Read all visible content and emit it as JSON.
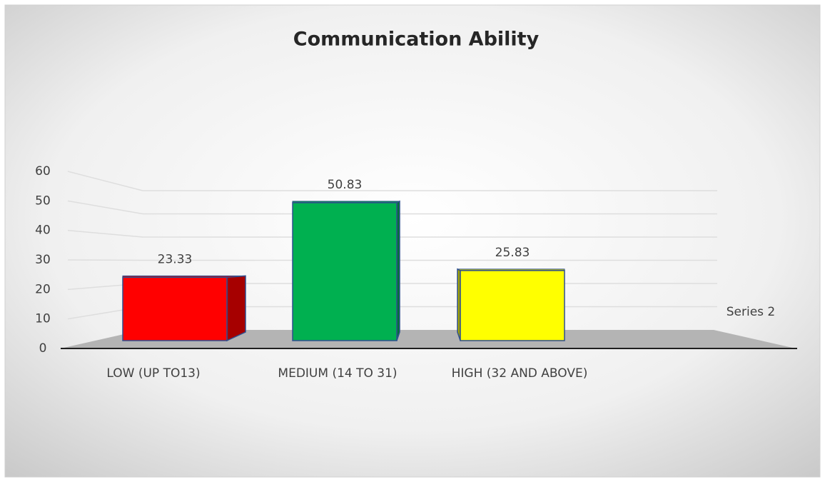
{
  "chart_data": {
    "type": "bar3d",
    "title": "Communication Ability",
    "categories": [
      "LOW (UP TO13)",
      "MEDIUM (14 TO 31)",
      "HIGH (32 AND ABOVE)"
    ],
    "series": [
      {
        "name": "Series 2",
        "values": [
          23.33,
          50.83,
          25.83
        ],
        "colors": [
          "#ff0000",
          "#00b050",
          "#ffff00"
        ]
      }
    ],
    "ylim": [
      0,
      60
    ],
    "yticks": [
      0,
      10,
      20,
      30,
      40,
      50,
      60
    ],
    "grid": true
  }
}
